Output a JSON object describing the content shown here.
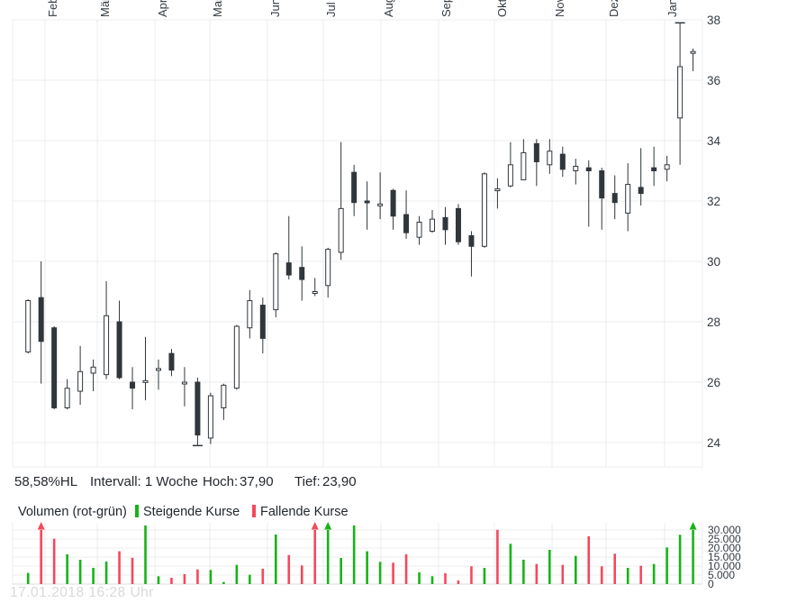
{
  "stats": {
    "percent_hl": "58,58%HL",
    "interval": "Intervall: 1 Woche",
    "hoch_label": "Hoch:",
    "hoch_value": "37,90",
    "tief_label": "Tief:",
    "tief_value": "23,90"
  },
  "legend": {
    "volume_label": "Volumen (rot-grün)",
    "rising_label": "Steigende Kurse",
    "falling_label": "Fallende Kurse"
  },
  "watermark": "17.01.2018 16:28 Uhr",
  "colors": {
    "candle": "#30363b",
    "grid": "#ececec",
    "baseline": "#dcdcdc",
    "volume_up": "#17b317",
    "volume_down": "#f4485c",
    "axis_text": "#333a40",
    "watermark": "#d9d9d9"
  },
  "chart_data": {
    "type": "candlestick",
    "title": "",
    "interval": "1 Woche",
    "high": 37.9,
    "low": 23.9,
    "percent_hl": 58.58,
    "x_axis": {
      "months": [
        "Feb",
        "Mär",
        "Apr",
        "Mai",
        "Jun",
        "Jul",
        "Aug",
        "Sep",
        "Okt",
        "Nov",
        "Dez",
        "Jan"
      ]
    },
    "price_axis": {
      "ticks": [
        38,
        36,
        34,
        32,
        30,
        28,
        26,
        24
      ]
    },
    "volume_axis": {
      "ticks": [
        {
          "v": 30000,
          "label": "30.000"
        },
        {
          "v": 25000,
          "label": "25.000"
        },
        {
          "v": 20000,
          "label": "20.000"
        },
        {
          "v": 15000,
          "label": "15.000"
        },
        {
          "v": 10000,
          "label": "10.000"
        },
        {
          "v": 5000,
          "label": "5.000"
        },
        {
          "v": 0,
          "label": "0"
        }
      ]
    },
    "weeks": [
      {
        "o": 27.0,
        "h": 28.75,
        "l": 26.95,
        "c": 28.7,
        "v": 6200,
        "vc": "g"
      },
      {
        "o": 28.8,
        "h": 30.0,
        "l": 25.95,
        "c": 27.35,
        "v": null,
        "vc": "r",
        "cut": true
      },
      {
        "o": 27.8,
        "h": 27.85,
        "l": 25.1,
        "c": 25.15,
        "v": 25150,
        "vc": "r"
      },
      {
        "o": 25.15,
        "h": 26.1,
        "l": 25.1,
        "c": 25.8,
        "v": 16500,
        "vc": "g"
      },
      {
        "o": 25.7,
        "h": 27.2,
        "l": 25.25,
        "c": 26.35,
        "v": 13500,
        "vc": "g"
      },
      {
        "o": 26.3,
        "h": 26.75,
        "l": 25.7,
        "c": 26.5,
        "v": 9000,
        "vc": "g"
      },
      {
        "o": 26.25,
        "h": 29.35,
        "l": 26.1,
        "c": 28.2,
        "v": 12500,
        "vc": "g"
      },
      {
        "o": 28.0,
        "h": 28.7,
        "l": 26.1,
        "c": 26.15,
        "v": 18200,
        "vc": "r"
      },
      {
        "o": 26.0,
        "h": 26.5,
        "l": 25.1,
        "c": 25.8,
        "v": 14600,
        "vc": "r"
      },
      {
        "o": 26.0,
        "h": 27.5,
        "l": 25.4,
        "c": 26.05,
        "v": 32500,
        "vc": "g"
      },
      {
        "o": 26.4,
        "h": 26.75,
        "l": 25.75,
        "c": 26.45,
        "v": 4350,
        "vc": "g"
      },
      {
        "o": 26.95,
        "h": 27.1,
        "l": 26.2,
        "c": 26.4,
        "v": 3500,
        "vc": "r"
      },
      {
        "o": 26.0,
        "h": 26.5,
        "l": 25.2,
        "c": 26.0,
        "v": 5500,
        "vc": "r"
      },
      {
        "o": 26.0,
        "h": 26.15,
        "l": 23.9,
        "c": 24.25,
        "v": 8150,
        "vc": "r",
        "mark": "tief"
      },
      {
        "o": 24.15,
        "h": 25.65,
        "l": 23.95,
        "c": 25.55,
        "v": 7850,
        "vc": "g"
      },
      {
        "o": 25.15,
        "h": 25.95,
        "l": 24.75,
        "c": 25.9,
        "v": 1150,
        "vc": "g"
      },
      {
        "o": 25.8,
        "h": 27.9,
        "l": 25.75,
        "c": 27.85,
        "v": 10650,
        "vc": "g"
      },
      {
        "o": 27.8,
        "h": 29.05,
        "l": 27.45,
        "c": 28.7,
        "v": 5150,
        "vc": "g"
      },
      {
        "o": 28.55,
        "h": 28.8,
        "l": 26.95,
        "c": 27.45,
        "v": 8500,
        "vc": "r"
      },
      {
        "o": 28.4,
        "h": 30.3,
        "l": 28.15,
        "c": 30.25,
        "v": 27500,
        "vc": "g"
      },
      {
        "o": 29.95,
        "h": 31.5,
        "l": 29.4,
        "c": 29.55,
        "v": 16150,
        "vc": "r"
      },
      {
        "o": 29.8,
        "h": 30.5,
        "l": 28.7,
        "c": 29.4,
        "v": 10350,
        "vc": "r"
      },
      {
        "o": 29.0,
        "h": 29.45,
        "l": 28.85,
        "c": 29.0,
        "v": null,
        "vc": "r",
        "cut": true
      },
      {
        "o": 29.2,
        "h": 30.45,
        "l": 28.8,
        "c": 30.4,
        "v": null,
        "vc": "g",
        "cut": true
      },
      {
        "o": 30.3,
        "h": 33.95,
        "l": 30.05,
        "c": 31.75,
        "v": 14500,
        "vc": "g"
      },
      {
        "o": 32.95,
        "h": 33.2,
        "l": 31.5,
        "c": 31.95,
        "v": 32500,
        "vc": "g"
      },
      {
        "o": 32.0,
        "h": 32.65,
        "l": 31.05,
        "c": 31.95,
        "v": 18200,
        "vc": "g"
      },
      {
        "o": 31.9,
        "h": 32.95,
        "l": 31.4,
        "c": 31.9,
        "v": 12350,
        "vc": "g"
      },
      {
        "o": 32.35,
        "h": 32.4,
        "l": 31.05,
        "c": 31.5,
        "v": 11850,
        "vc": "r"
      },
      {
        "o": 31.55,
        "h": 32.35,
        "l": 30.75,
        "c": 30.95,
        "v": 16500,
        "vc": "r"
      },
      {
        "o": 30.8,
        "h": 31.5,
        "l": 30.55,
        "c": 31.3,
        "v": 6500,
        "vc": "g"
      },
      {
        "o": 31.0,
        "h": 31.7,
        "l": 30.95,
        "c": 31.4,
        "v": 4350,
        "vc": "g"
      },
      {
        "o": 31.45,
        "h": 31.8,
        "l": 30.55,
        "c": 31.05,
        "v": 6000,
        "vc": "r"
      },
      {
        "o": 31.75,
        "h": 31.9,
        "l": 30.55,
        "c": 30.65,
        "v": 2000,
        "vc": "r"
      },
      {
        "o": 30.85,
        "h": 31.0,
        "l": 29.5,
        "c": 30.5,
        "v": 9850,
        "vc": "r"
      },
      {
        "o": 30.5,
        "h": 32.95,
        "l": 30.45,
        "c": 32.9,
        "v": 9000,
        "vc": "g"
      },
      {
        "o": 32.4,
        "h": 32.75,
        "l": 31.75,
        "c": 32.4,
        "v": 30150,
        "vc": "r"
      },
      {
        "o": 32.5,
        "h": 33.95,
        "l": 32.45,
        "c": 33.2,
        "v": 22350,
        "vc": "g"
      },
      {
        "o": 32.7,
        "h": 34.05,
        "l": 32.7,
        "c": 33.6,
        "v": 13500,
        "vc": "g"
      },
      {
        "o": 33.9,
        "h": 34.05,
        "l": 32.5,
        "c": 33.3,
        "v": 11150,
        "vc": "r"
      },
      {
        "o": 33.2,
        "h": 34.05,
        "l": 32.9,
        "c": 33.65,
        "v": 19000,
        "vc": "g"
      },
      {
        "o": 33.55,
        "h": 33.8,
        "l": 32.8,
        "c": 33.05,
        "v": 10650,
        "vc": "r"
      },
      {
        "o": 33.0,
        "h": 33.4,
        "l": 32.55,
        "c": 33.15,
        "v": 15650,
        "vc": "g"
      },
      {
        "o": 33.1,
        "h": 33.35,
        "l": 31.15,
        "c": 33.0,
        "v": 26500,
        "vc": "r"
      },
      {
        "o": 33.0,
        "h": 33.1,
        "l": 31.05,
        "c": 32.1,
        "v": 9850,
        "vc": "r"
      },
      {
        "o": 32.25,
        "h": 32.85,
        "l": 31.4,
        "c": 31.95,
        "v": 16850,
        "vc": "r"
      },
      {
        "o": 31.6,
        "h": 33.25,
        "l": 31.0,
        "c": 32.55,
        "v": 9000,
        "vc": "g"
      },
      {
        "o": 32.45,
        "h": 33.75,
        "l": 31.85,
        "c": 32.25,
        "v": 10150,
        "vc": "r"
      },
      {
        "o": 33.1,
        "h": 33.8,
        "l": 32.5,
        "c": 33.0,
        "v": 11150,
        "vc": "g"
      },
      {
        "o": 33.05,
        "h": 33.5,
        "l": 32.65,
        "c": 33.2,
        "v": 20350,
        "vc": "g"
      },
      {
        "o": 34.75,
        "h": 37.9,
        "l": 33.2,
        "c": 36.45,
        "v": 27350,
        "vc": "g",
        "mark": "hoch"
      },
      {
        "o": 36.9,
        "h": 37.05,
        "l": 36.3,
        "c": 36.95,
        "v": null,
        "vc": "g",
        "cut": true
      }
    ]
  }
}
